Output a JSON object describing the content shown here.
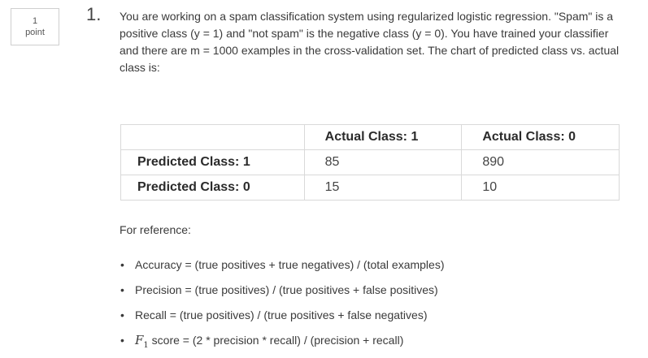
{
  "points": {
    "value": "1",
    "unit": "point"
  },
  "question": {
    "number": "1.",
    "text": "You are working on a spam classification system using regularized logistic regression. \"Spam\" is a positive class (y = 1) and \"not spam\" is the negative class (y = 0). You have trained your classifier and there are m = 1000 examples in the cross-validation set. The chart of predicted class vs. actual class is:"
  },
  "table": {
    "headers": [
      "",
      "Actual Class: 1",
      "Actual Class: 0"
    ],
    "rows": [
      {
        "label": "Predicted Class: 1",
        "values": [
          "85",
          "890"
        ]
      },
      {
        "label": "Predicted Class: 0",
        "values": [
          "15",
          "10"
        ]
      }
    ]
  },
  "reference": {
    "label": "For reference:",
    "items": [
      "Accuracy = (true positives + true negatives) / (total examples)",
      "Precision = (true positives) / (true positives + false positives)",
      "Recall = (true positives) / (true positives + false negatives)"
    ],
    "f1_symbol": "F",
    "f1_subscript": "1",
    "f1_text": " score = (2 * precision * recall) / (precision + recall)",
    "bullet": "•"
  }
}
